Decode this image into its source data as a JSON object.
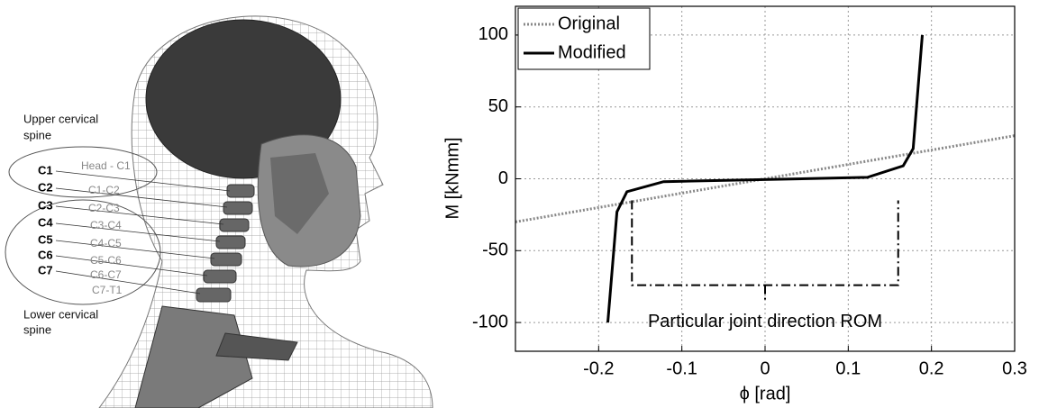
{
  "illustration": {
    "upper_label": [
      "Upper cervical",
      "spine"
    ],
    "lower_label": [
      "Lower cervical",
      "spine"
    ],
    "vertebrae": [
      "C1",
      "C2",
      "C3",
      "C4",
      "C5",
      "C6",
      "C7"
    ],
    "joints": [
      "Head - C1",
      "C1-C2",
      "C2-C3",
      "C3-C4",
      "C4-C5",
      "C5-C6",
      "C6-C7",
      "C7-T1"
    ]
  },
  "chart_data": {
    "type": "line",
    "xlabel": "ϕ [rad]",
    "ylabel": "M [kNmm]",
    "xlim": [
      -0.3,
      0.3
    ],
    "ylim": [
      -120,
      120
    ],
    "xticks": [
      -0.2,
      -0.1,
      0,
      0.1,
      0.2,
      0.3
    ],
    "yticks": [
      -100,
      -50,
      0,
      50,
      100
    ],
    "grid": true,
    "legend": "upper-left",
    "series": [
      {
        "name": "Original",
        "color": "#888888",
        "style": "dotted",
        "x": [
          -0.3,
          0.3
        ],
        "values": [
          -30,
          30
        ]
      },
      {
        "name": "Modified",
        "color": "#000000",
        "style": "solid",
        "x": [
          -0.189,
          -0.178,
          -0.166,
          -0.122,
          0.123,
          0.166,
          0.178,
          0.189
        ],
        "values": [
          -100,
          -23,
          -9,
          -2,
          1,
          9,
          21,
          100
        ]
      }
    ],
    "annotation": {
      "text": "Particular joint direction ROM",
      "x": [
        -0.16,
        0.16
      ],
      "y": [
        -15,
        -74
      ]
    }
  }
}
